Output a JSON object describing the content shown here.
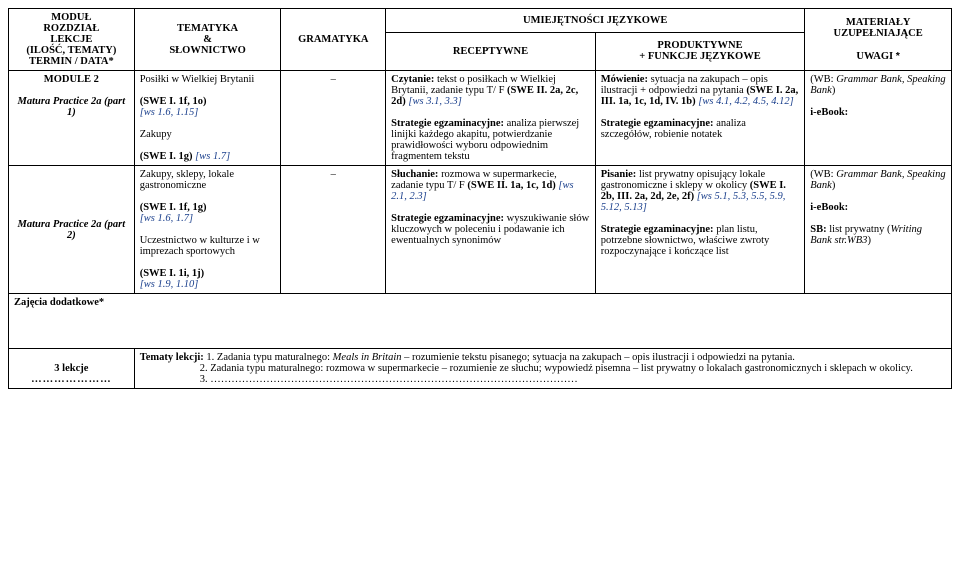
{
  "header": {
    "col1": "MODUŁ\nROZDZIAŁ\nLEKCJE\n(ILOŚĆ, TEMATY)\nTERMIN / DATA*",
    "col2": "TEMATYKA\n&\nSŁOWNICTWO",
    "col3": "GRAMATYKA",
    "col4_top": "UMIEJĘTNOŚCI JĘZYKOWE",
    "col4a": "RECEPTYWNE",
    "col4b": "PRODUKTYWNE\n+ FUNKCJE JĘZYKOWE",
    "col5": "MATERIAŁY\nUZUPEŁNIAJĄCE",
    "col5b": "UWAGI ",
    "col5b_star": "*"
  },
  "row1": {
    "c1_l1": "MODULE 2",
    "c1_l2": "Matura Practice 2a (part 1)",
    "c2_a": "Posiłki w Wielkiej Brytanii",
    "c2_b": "(SWE I. 1f, 1o)",
    "c2_b_ref": "[ws 1.6, 1.15]",
    "c2_c": "Zakupy",
    "c2_d": "(SWE I. 1g) ",
    "c2_d_ref": "[ws 1.7]",
    "c3": "–",
    "c4a_lead": "Czytanie:",
    "c4a_rest": " tekst o posiłkach w Wielkiej Brytanii, zadanie typu T/ F ",
    "c4a_b": "(SWE II. 2a, 2c, 2d)",
    "c4a_ref": "[ws 3.1, 3.3]",
    "c4a_s_lead": "Strategie egzaminacyjne:",
    "c4a_s_rest": " analiza pierwszej linijki każdego akapitu, potwierdzanie prawidłowości wyboru odpowiednim fragmentem tekstu",
    "c4b_lead": "Mówienie:",
    "c4b_rest": " sytuacja na zakupach – opis ilustracji + odpowiedzi na pytania ",
    "c4b_b": "(SWE I. 2a, III. 1a, 1c, 1d, IV. 1b) ",
    "c4b_ref": "[ws 4.1, 4.2, 4.5, 4.12]",
    "c4b_s_lead": "Strategie egzaminacyjne:",
    "c4b_s_rest": " analiza szczegółów, robienie notatek",
    "c5_a": "(WB: ",
    "c5_a_i": "Grammar Bank, Speaking Bank",
    "c5_a_end": ")",
    "c5_b": "i-eBook:"
  },
  "row2": {
    "c1_l1": "Matura Practice 2a (part 2)",
    "c2_a": "Zakupy, sklepy, lokale gastronomiczne",
    "c2_b": "(SWE I. 1f, 1g)",
    "c2_b_ref": "[ws 1.6, 1.7]",
    "c2_c": "Uczestnictwo w kulturze i w imprezach sportowych",
    "c2_d": "(SWE I. 1i, 1j)",
    "c2_d_ref": "[ws 1.9, 1.10]",
    "c3": "–",
    "c4a_lead": "Słuchanie:",
    "c4a_rest": " rozmowa w supermarkecie, zadanie typu T/ F ",
    "c4a_b": "(SWE II. 1a, 1c, 1d)",
    "c4a_ref": "[ws 2.1, 2.3]",
    "c4a_s_lead": "Strategie egzaminacyjne:",
    "c4a_s_rest": " wyszukiwanie słów kluczowych w poleceniu i podawanie ich ewentualnych synonimów",
    "c4b_lead": "Pisanie:",
    "c4b_rest": " list prywatny opisujący lokale gastronomiczne i sklepy w okolicy ",
    "c4b_b": "(SWE I. 2b, III. 2a, 2d, 2e, 2f) ",
    "c4b_ref": "[ws 5.1, 5.3, 5.5, 5.9, 5.12, 5.13]",
    "c4b_s_lead": "Strategie egzaminacyjne:",
    "c4b_s_rest": " plan listu, potrzebne słownictwo, właściwe zwroty rozpoczynające i kończące list",
    "c5_a": "(WB: ",
    "c5_a_i": "Grammar Bank, Speaking Bank",
    "c5_a_end": ")",
    "c5_b": "i-eBook:",
    "c5_c": "SB: ",
    "c5_c_rest": "list prywatny (",
    "c5_c_i": "Writing Bank str.WB3",
    "c5_c_end": ")"
  },
  "extra_row": {
    "label": "Zajęcia dodatkowe*"
  },
  "bottom": {
    "left_l1": "3 lekcje",
    "left_dots": "…………………",
    "right_lead": "Tematy lekcji:",
    "right_1": " 1. Zadania typu maturalnego: ",
    "right_1_i": "Meals in Britain",
    "right_1_rest": " – rozumienie tekstu pisanego; sytuacja na zakupach – opis ilustracji i odpowiedzi na pytania.",
    "right_2": "2. Zadania typu maturalnego: rozmowa w supermarkecie – rozumienie ze słuchu; wypowiedź pisemna – list prywatny o lokalach gastronomicznych i sklepach w okolicy.",
    "right_3": "3. ……………………………………………………………………………………………"
  },
  "colors": {
    "ref": "#1a3f8c",
    "text": "#000000",
    "bg": "#ffffff",
    "border": "#000000"
  }
}
